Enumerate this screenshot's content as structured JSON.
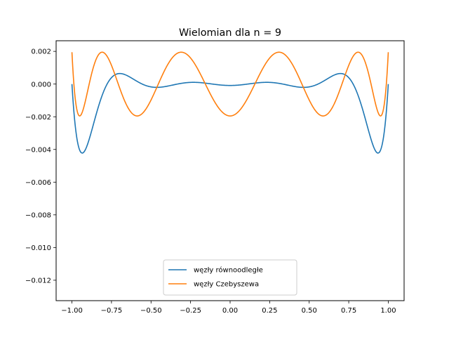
{
  "chart_data": {
    "type": "line",
    "title": "Wielomian dla n = 9",
    "xlabel": "",
    "ylabel": "",
    "xlim": [
      -1.1,
      1.1
    ],
    "ylim": [
      -0.01325,
      0.00265
    ],
    "xticks": [
      -1.0,
      -0.75,
      -0.5,
      -0.25,
      0.0,
      0.25,
      0.5,
      0.75,
      1.0
    ],
    "xtick_labels": [
      "−1.00",
      "−0.75",
      "−0.50",
      "−0.25",
      "0.00",
      "0.25",
      "0.50",
      "0.75",
      "1.00"
    ],
    "yticks": [
      0.002,
      0.0,
      -0.002,
      -0.004,
      -0.006,
      -0.008,
      -0.01,
      -0.012
    ],
    "ytick_labels": [
      "0.002",
      "0.000",
      "−0.002",
      "−0.004",
      "−0.006",
      "−0.008",
      "−0.010",
      "−0.012"
    ],
    "grid": false,
    "legend_position": "lower center",
    "series": [
      {
        "name": "węzły równoodległe",
        "color": "#1f77b4",
        "nodes": "equidistant",
        "num_nodes": 10
      },
      {
        "name": "węzły Czebyszewa",
        "color": "#ff7f0e",
        "nodes": "chebyshev",
        "num_nodes": 10
      }
    ]
  }
}
